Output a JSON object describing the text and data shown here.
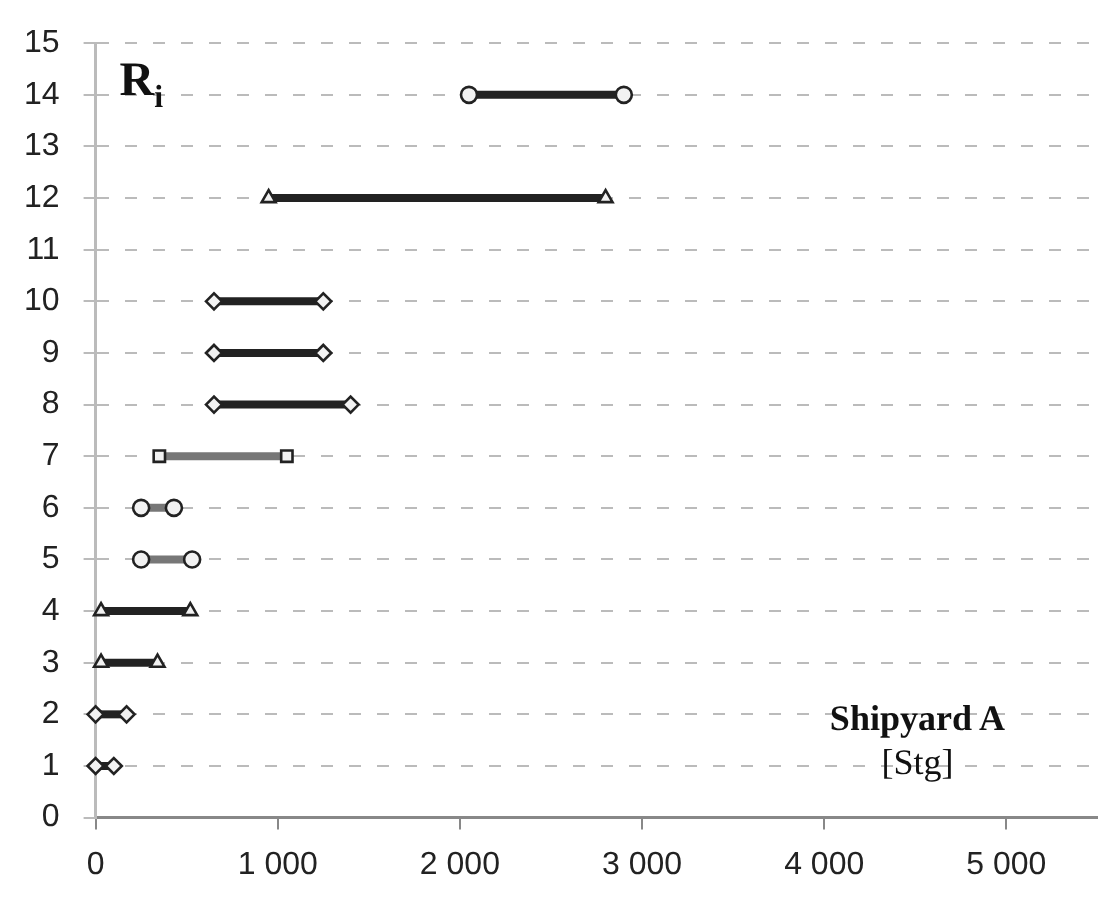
{
  "chart_data": {
    "type": "line",
    "ylabel": "R$_{i}$",
    "annotations": [
      "Shipyard A",
      "[Stg]"
    ],
    "xlim": [
      0,
      5500
    ],
    "xticks": [
      0,
      {
        "value": 1000,
        "label": "1 000"
      },
      {
        "value": 2000,
        "label": "2 000"
      },
      {
        "value": 3000,
        "label": "3 000"
      },
      {
        "value": 4000,
        "label": "4 000"
      },
      {
        "value": 5000,
        "label": "5 000"
      }
    ],
    "ylim": [
      0,
      15
    ],
    "yticks": [
      0,
      1,
      2,
      3,
      4,
      5,
      6,
      7,
      8,
      9,
      10,
      11,
      12,
      13,
      14,
      15
    ],
    "grid": "y",
    "legend": false,
    "line_style": "solid",
    "series": [
      {
        "x": [
          0,
          100
        ],
        "values": [
          1,
          1
        ],
        "marker": "diamond",
        "color": "#222222"
      },
      {
        "x": [
          0,
          170
        ],
        "values": [
          2,
          2
        ],
        "marker": "diamond",
        "color": "#222222"
      },
      {
        "x": [
          30,
          340
        ],
        "values": [
          3,
          3
        ],
        "marker": "triangle",
        "color": "#222222"
      },
      {
        "x": [
          30,
          520
        ],
        "values": [
          4,
          4
        ],
        "marker": "triangle",
        "color": "#222222"
      },
      {
        "x": [
          250,
          530
        ],
        "values": [
          5,
          5
        ],
        "marker": "circle",
        "color": "#777777"
      },
      {
        "x": [
          250,
          430
        ],
        "values": [
          6,
          6
        ],
        "marker": "circle",
        "color": "#777777"
      },
      {
        "x": [
          350,
          1050
        ],
        "values": [
          7,
          7
        ],
        "marker": "square",
        "color": "#777777"
      },
      {
        "x": [
          650,
          1400
        ],
        "values": [
          8,
          8
        ],
        "marker": "diamond",
        "color": "#222222"
      },
      {
        "x": [
          650,
          1250
        ],
        "values": [
          9,
          9
        ],
        "marker": "diamond",
        "color": "#222222"
      },
      {
        "x": [
          650,
          1250
        ],
        "values": [
          10,
          10
        ],
        "marker": "diamond",
        "color": "#222222"
      },
      {
        "x": [
          950,
          2800
        ],
        "values": [
          12,
          12
        ],
        "marker": "triangle",
        "color": "#222222"
      },
      {
        "x": [
          2050,
          2900
        ],
        "values": [
          14,
          14
        ],
        "marker": "circle",
        "color": "#222222"
      }
    ]
  }
}
